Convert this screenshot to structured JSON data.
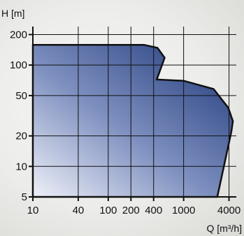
{
  "chart_data": {
    "type": "area",
    "title": "",
    "xlabel": "Q [m³/h]",
    "ylabel": "H [m]",
    "x_scale": "log",
    "y_scale": "log",
    "xlim": [
      10,
      5000
    ],
    "ylim": [
      5,
      240
    ],
    "x_ticks": [
      10,
      40,
      100,
      200,
      400,
      1000,
      4000
    ],
    "x_tick_labels": [
      "10",
      "40",
      "100",
      "200",
      "400",
      "1000",
      "4000"
    ],
    "y_ticks": [
      5,
      10,
      20,
      50,
      100,
      200
    ],
    "y_tick_labels": [
      "5",
      "10",
      "20",
      "50",
      "100",
      "200"
    ],
    "grid": true,
    "area_color": "#203f85",
    "outline_color": "#111111",
    "envelope": [
      {
        "x": 10,
        "y": 158
      },
      {
        "x": 300,
        "y": 158
      },
      {
        "x": 450,
        "y": 148
      },
      {
        "x": 560,
        "y": 118
      },
      {
        "x": 440,
        "y": 72
      },
      {
        "x": 1000,
        "y": 70
      },
      {
        "x": 2500,
        "y": 58
      },
      {
        "x": 3900,
        "y": 38
      },
      {
        "x": 4500,
        "y": 28
      },
      {
        "x": 4300,
        "y": 22
      },
      {
        "x": 2800,
        "y": 5
      }
    ]
  }
}
